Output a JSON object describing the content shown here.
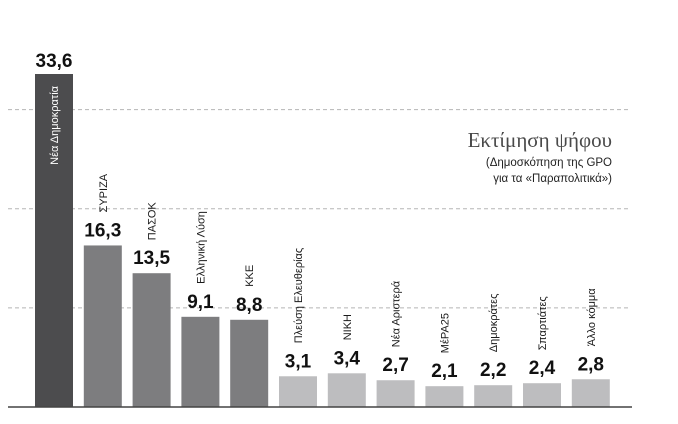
{
  "chart_data": {
    "type": "bar",
    "title": "Εκτίμηση ψήφου",
    "subtitle": [
      "(Δημοσκόπηση της GPO",
      "για τα «Παραπολιτικά»)"
    ],
    "categories": [
      "Νέα Δημοκρατία",
      "ΣΥΡΙΖΑ",
      "ΠΑΣΟΚ",
      "Ελληνική Λύση",
      "ΚΚΕ",
      "Πλεύση Ελευθερίας",
      "ΝΙΚΗ",
      "Νέα Αριστερά",
      "ΜέΡΑ25",
      "Δημοκράτες",
      "Σπαρτιάτες",
      "Άλλο κόμμα"
    ],
    "values": [
      33.6,
      16.3,
      13.5,
      9.1,
      8.8,
      3.1,
      3.4,
      2.7,
      2.1,
      2.2,
      2.4,
      2.8
    ],
    "value_labels": [
      "33,6",
      "16,3",
      "13,5",
      "9,1",
      "8,8",
      "3,1",
      "3,4",
      "2,7",
      "2,1",
      "2,2",
      "2,4",
      "2,8"
    ],
    "ylim": [
      0,
      35
    ],
    "gridlines": [
      10,
      20,
      30
    ],
    "grid": true,
    "colors": {
      "first": "#4c4c4e",
      "major": "#7d7d7f",
      "minor": "#bdbdbf",
      "grid": "#b5b5b5",
      "axis": "#444444"
    }
  }
}
